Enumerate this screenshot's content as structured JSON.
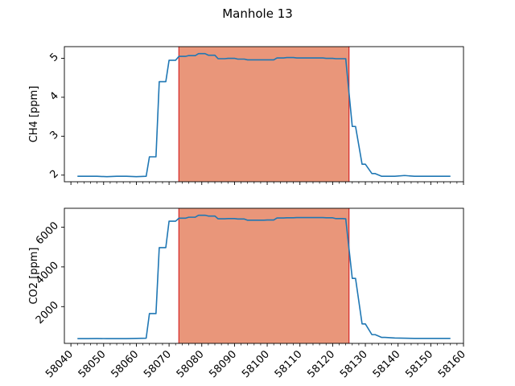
{
  "chart_data": {
    "type": "line",
    "title": "Manhole 13",
    "x": [
      58042,
      58045,
      58048,
      58051,
      58054,
      58057,
      58060,
      58063,
      58064,
      58066,
      58067,
      58069,
      58070,
      58072,
      58073,
      58075,
      58076,
      58078,
      58079,
      58081,
      58082,
      58084,
      58085,
      58087,
      58088,
      58090,
      58091,
      58093,
      58094,
      58096,
      58097,
      58099,
      58100,
      58102,
      58103,
      58105,
      58106,
      58108,
      58109,
      58111,
      58112,
      58114,
      58115,
      58117,
      58118,
      58120,
      58121,
      58123,
      58124,
      58126,
      58127,
      58129,
      58130,
      58132,
      58133,
      58135,
      58136,
      58139,
      58142,
      58145,
      58148,
      58151,
      58156
    ],
    "shaded_region": {
      "x": [
        58073,
        58125
      ],
      "color": "#e9967a",
      "edge_color": "#d62728"
    },
    "xticks": [
      58040,
      58050,
      58060,
      58070,
      58080,
      58090,
      58100,
      58110,
      58120,
      58130,
      58140,
      58150,
      58160
    ],
    "xlim": [
      58038,
      58160
    ],
    "panels": [
      {
        "name": "ch4",
        "ylabel": "CH4 [ppm]",
        "ylim": [
          1.83,
          5.3
        ],
        "yticks": [
          2,
          3,
          4,
          5
        ],
        "show_xtick_labels": false,
        "series": [
          {
            "color": "#1f77b4",
            "values": [
              1.97,
              1.97,
              1.97,
              1.96,
              1.97,
              1.97,
              1.96,
              1.97,
              2.47,
              2.47,
              4.4,
              4.4,
              4.95,
              4.95,
              5.05,
              5.05,
              5.07,
              5.07,
              5.12,
              5.12,
              5.08,
              5.08,
              4.99,
              4.99,
              5.0,
              5.0,
              4.98,
              4.98,
              4.96,
              4.96,
              4.96,
              4.96,
              4.96,
              4.96,
              5.01,
              5.01,
              5.02,
              5.02,
              5.01,
              5.01,
              5.01,
              5.01,
              5.01,
              5.01,
              5.0,
              5.0,
              4.99,
              4.99,
              4.99,
              3.25,
              3.25,
              2.28,
              2.28,
              2.04,
              2.04,
              1.97,
              1.97,
              1.97,
              1.99,
              1.97,
              1.97,
              1.97,
              1.97
            ]
          }
        ]
      },
      {
        "name": "co2",
        "ylabel": "CO2 [ppm]",
        "ylim": [
          150,
          6950
        ],
        "yticks": [
          2000,
          4000,
          6000
        ],
        "show_xtick_labels": true,
        "series": [
          {
            "color": "#1f77b4",
            "values": [
              390,
              390,
              395,
              390,
              390,
              390,
              400,
              410,
              1650,
              1650,
              4970,
              4970,
              6300,
              6300,
              6450,
              6450,
              6500,
              6500,
              6600,
              6600,
              6560,
              6560,
              6420,
              6420,
              6430,
              6430,
              6410,
              6410,
              6350,
              6350,
              6350,
              6350,
              6360,
              6360,
              6460,
              6460,
              6470,
              6470,
              6480,
              6480,
              6480,
              6480,
              6480,
              6480,
              6470,
              6470,
              6430,
              6430,
              6420,
              3420,
              3420,
              1130,
              1130,
              590,
              590,
              450,
              450,
              420,
              410,
              400,
              400,
              400,
              400
            ]
          }
        ]
      }
    ]
  }
}
